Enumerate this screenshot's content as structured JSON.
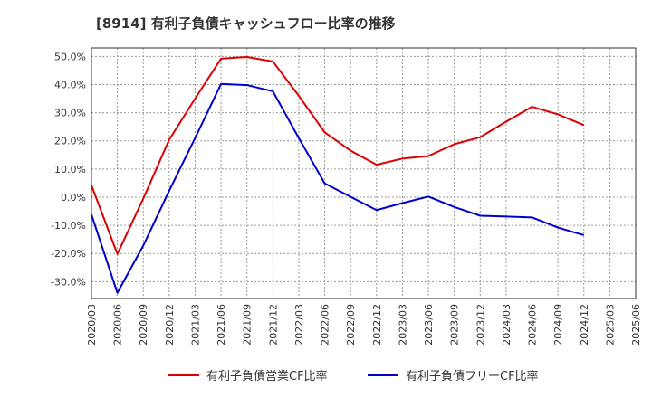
{
  "chart_data": {
    "type": "line",
    "title": "[8914]  有利子負債キャッシュフロー比率の推移",
    "xlabel": "",
    "ylabel": "",
    "categories": [
      "2020/03",
      "2020/06",
      "2020/09",
      "2020/12",
      "2021/03",
      "2021/06",
      "2021/09",
      "2021/12",
      "2022/03",
      "2022/06",
      "2022/09",
      "2022/12",
      "2023/03",
      "2023/06",
      "2023/09",
      "2023/12",
      "2024/03",
      "2024/06",
      "2024/09",
      "2024/12",
      "2025/03",
      "2025/06"
    ],
    "y_ticks": [
      50,
      40,
      30,
      20,
      10,
      0,
      -10,
      -20,
      -30
    ],
    "ylim": [
      -36,
      53
    ],
    "grid": true,
    "legend_position": "bottom",
    "series": [
      {
        "name": "有利子負債営業CF比率",
        "color": "#dd0000",
        "values": [
          4.2,
          -20.2,
          -0.5,
          20.4,
          35.0,
          49.2,
          49.8,
          48.2,
          36.0,
          23.0,
          16.5,
          11.5,
          13.7,
          14.6,
          18.8,
          21.3,
          26.8,
          32.1,
          29.4,
          25.6,
          null,
          null
        ]
      },
      {
        "name": "有利子負債フリーCF比率",
        "color": "#0000cc",
        "values": [
          -6.2,
          -34.0,
          -17.2,
          2.3,
          21.0,
          40.2,
          39.8,
          37.6,
          21.0,
          4.9,
          0.1,
          -4.6,
          -2.1,
          0.2,
          -3.5,
          -6.6,
          -6.9,
          -7.2,
          -10.8,
          -13.5,
          null,
          null
        ]
      }
    ]
  }
}
